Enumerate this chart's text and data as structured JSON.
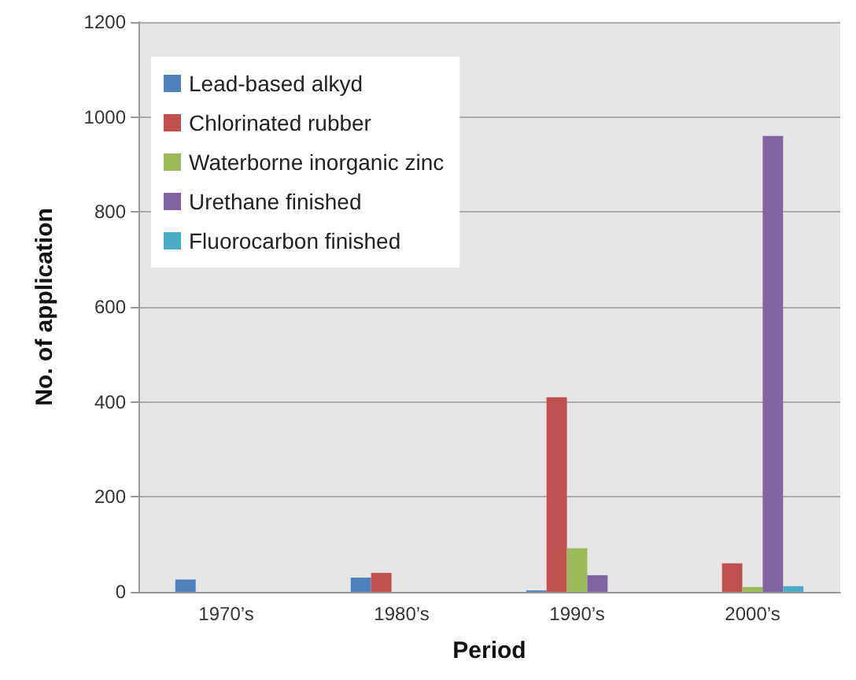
{
  "chart_data": {
    "type": "bar",
    "xlabel": "Period",
    "ylabel": "No. of application",
    "categories": [
      "1970’s",
      "1980’s",
      "1990’s",
      "2000’s"
    ],
    "series": [
      {
        "name": "Lead-based alkyd",
        "color": "#4f81bd",
        "values": [
          26,
          30,
          3,
          0
        ]
      },
      {
        "name": "Chlorinated rubber",
        "color": "#c0504d",
        "values": [
          0,
          40,
          410,
          60
        ]
      },
      {
        "name": "Waterborne inorganic zinc",
        "color": "#9bbb59",
        "values": [
          0,
          0,
          92,
          10
        ]
      },
      {
        "name": "Urethane finished",
        "color": "#8064a2",
        "values": [
          0,
          0,
          35,
          960
        ]
      },
      {
        "name": "Fluorocarbon finished",
        "color": "#4bacc6",
        "values": [
          0,
          0,
          0,
          12
        ]
      }
    ],
    "ylim": [
      0,
      1200
    ],
    "yticks": [
      0,
      200,
      400,
      600,
      800,
      1000,
      1200
    ],
    "grid": "y",
    "legend": "top left"
  }
}
